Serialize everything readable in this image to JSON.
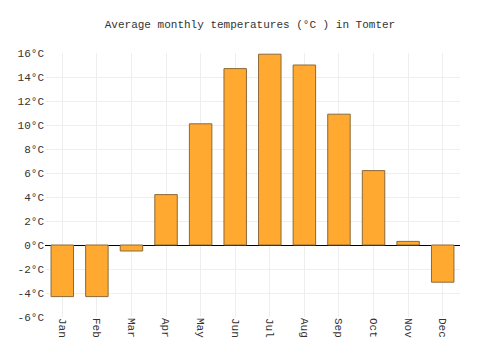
{
  "chart_data": {
    "type": "bar",
    "title": "Average monthly temperatures (°C ) in Tomter",
    "categories": [
      "Jan",
      "Feb",
      "Mar",
      "Apr",
      "May",
      "Jun",
      "Jul",
      "Aug",
      "Sep",
      "Oct",
      "Nov",
      "Dec"
    ],
    "values": [
      -4.3,
      -4.3,
      -0.5,
      4.2,
      10.1,
      14.7,
      15.9,
      15.0,
      10.9,
      6.2,
      0.3,
      -3.1
    ],
    "color": "#ffa930",
    "ylim": [
      -6,
      16
    ],
    "yticks": [
      {
        "value": -6,
        "label": "-6°C"
      },
      {
        "value": -4,
        "label": "-4°C"
      },
      {
        "value": -2,
        "label": "-2°C"
      },
      {
        "value": 0,
        "label": "0°C"
      },
      {
        "value": 2,
        "label": "2°C"
      },
      {
        "value": 4,
        "label": "4°C"
      },
      {
        "value": 6,
        "label": "6°C"
      },
      {
        "value": 8,
        "label": "8°C"
      },
      {
        "value": 10,
        "label": "10°C"
      },
      {
        "value": 12,
        "label": "12°C"
      },
      {
        "value": 14,
        "label": "14°C"
      },
      {
        "value": 16,
        "label": "16°C"
      }
    ],
    "grid": true
  }
}
